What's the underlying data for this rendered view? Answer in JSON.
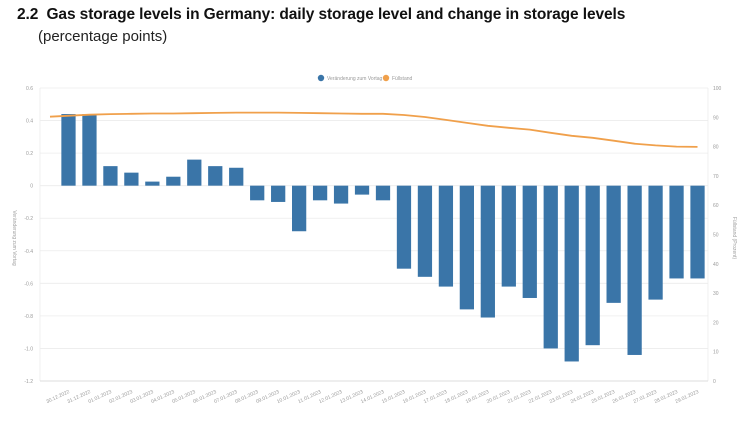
{
  "heading": {
    "number": "2.2",
    "title": "Gas storage levels in Germany: daily storage level and change in storage levels",
    "subtitle": "(percentage points)"
  },
  "chart_data": {
    "type": "bar",
    "title": "Gas storage levels in Germany: daily storage level and change in storage levels",
    "subtitle": "(percentage points)",
    "categories": [
      "30.12.2022",
      "31.12.2022",
      "01.01.2023",
      "02.01.2023",
      "03.01.2023",
      "04.01.2023",
      "05.01.2023",
      "06.01.2023",
      "07.01.2023",
      "08.01.2023",
      "09.01.2023",
      "10.01.2023",
      "11.01.2023",
      "12.01.2023",
      "13.01.2023",
      "14.01.2023",
      "15.01.2023",
      "16.01.2023",
      "17.01.2023",
      "18.01.2023",
      "19.01.2023",
      "20.01.2023",
      "21.01.2023",
      "22.01.2023",
      "23.01.2023",
      "24.01.2023",
      "25.01.2023",
      "26.01.2023",
      "27.01.2023",
      "28.01.2023",
      "29.01.2023"
    ],
    "series": [
      {
        "name": "Veränderung zum Vortag",
        "type": "bar",
        "axis": "left",
        "color": "#3a75a8",
        "values": [
          0.44,
          0.44,
          0.12,
          0.08,
          0.025,
          0.055,
          0.16,
          0.12,
          0.11,
          -0.09,
          -0.1,
          -0.28,
          -0.09,
          -0.11,
          -0.055,
          -0.09,
          -0.51,
          -0.56,
          -0.62,
          -0.76,
          -0.81,
          -0.62,
          -0.69,
          -1.0,
          -1.08,
          -0.98,
          -0.72,
          -1.04,
          -0.7,
          -0.57,
          -0.57
        ]
      },
      {
        "name": "Füllstand",
        "type": "line",
        "axis": "right",
        "color": "#f0a04b",
        "values": [
          90.2,
          90.9,
          91.1,
          91.2,
          91.3,
          91.3,
          91.4,
          91.5,
          91.6,
          91.6,
          91.6,
          91.5,
          91.4,
          91.3,
          91.2,
          91.2,
          90.8,
          90.1,
          89.1,
          88.1,
          87.1,
          86.4,
          85.8,
          84.7,
          83.7,
          83.0,
          82.0,
          81.0,
          80.4,
          80.0,
          79.9
        ]
      }
    ],
    "ylabel": "Veränderung zum Vortag",
    "y2label": "Füllstand (Prozent)",
    "ylim": [
      -1.2,
      0.6
    ],
    "y2lim": [
      0,
      100
    ],
    "yticks": [
      "0.6",
      "0.4",
      "0.2",
      "0",
      "-0.2",
      "-0.4",
      "-0.6",
      "-0.8",
      "-1.0",
      "-1.2"
    ],
    "y2ticks": [
      "100",
      "90",
      "80",
      "70",
      "60",
      "50",
      "40",
      "30",
      "20",
      "10",
      "0"
    ],
    "grid": true,
    "legend_position": "top-center"
  }
}
